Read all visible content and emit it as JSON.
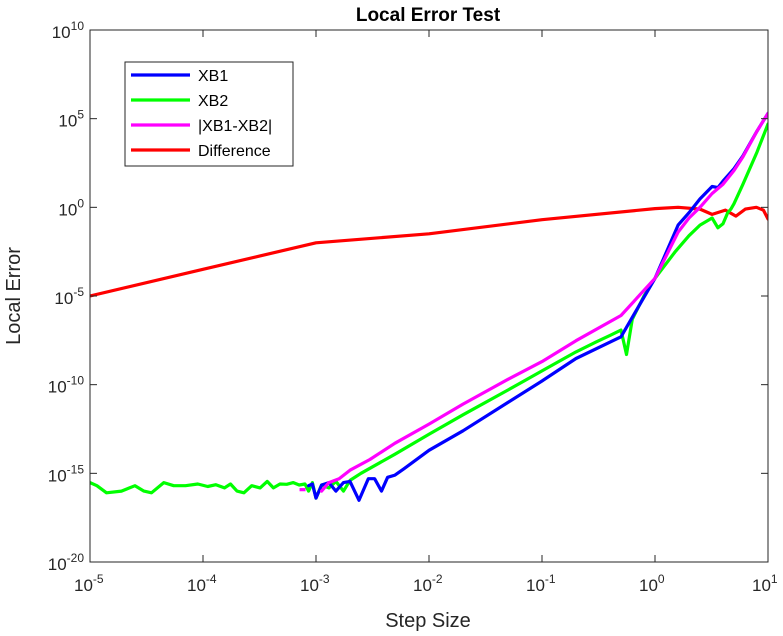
{
  "chart_data": {
    "type": "line",
    "title": "Local Error Test",
    "xlabel": "Step Size",
    "ylabel": "Local Error",
    "xscale": "log",
    "yscale": "log",
    "xlim": [
      1e-05,
      10
    ],
    "ylim": [
      1e-20,
      10000000000.0
    ],
    "grid": false,
    "legend_position": "top-left",
    "x_ticks": [
      {
        "base": "10",
        "exp": "-5",
        "value": 1e-05
      },
      {
        "base": "10",
        "exp": "-4",
        "value": 0.0001
      },
      {
        "base": "10",
        "exp": "-3",
        "value": 0.001
      },
      {
        "base": "10",
        "exp": "-2",
        "value": 0.01
      },
      {
        "base": "10",
        "exp": "-1",
        "value": 0.1
      },
      {
        "base": "10",
        "exp": "0",
        "value": 1
      },
      {
        "base": "10",
        "exp": "1",
        "value": 10
      }
    ],
    "y_ticks": [
      {
        "base": "10",
        "exp": "-20",
        "value": 1e-20
      },
      {
        "base": "10",
        "exp": "-15",
        "value": 1e-15
      },
      {
        "base": "10",
        "exp": "-10",
        "value": 1e-10
      },
      {
        "base": "10",
        "exp": "-5",
        "value": 1e-05
      },
      {
        "base": "10",
        "exp": "0",
        "value": 1
      },
      {
        "base": "10",
        "exp": "5",
        "value": 100000.0
      },
      {
        "base": "10",
        "exp": "10",
        "value": 10000000000.0
      }
    ],
    "series": [
      {
        "name": "Difference",
        "color": "#ff0000",
        "points": [
          [
            1e-05,
            1e-05
          ],
          [
            0.0001,
            0.00032
          ],
          [
            0.001,
            0.01
          ],
          [
            0.01,
            0.032
          ],
          [
            0.1,
            0.2
          ],
          [
            1,
            0.85
          ],
          [
            1.6,
            1.0
          ],
          [
            2.5,
            0.8
          ],
          [
            3.2,
            0.4
          ],
          [
            4.2,
            0.7
          ],
          [
            5.2,
            0.32
          ],
          [
            6.3,
            0.8
          ],
          [
            7.9,
            1.0
          ],
          [
            9.1,
            0.7
          ],
          [
            10,
            0.22
          ]
        ]
      },
      {
        "name": "XB2",
        "color": "#00ff00",
        "points": [
          [
            1e-05,
            3e-16
          ],
          [
            1.15e-05,
            2e-16
          ],
          [
            1.4e-05,
            8e-17
          ],
          [
            1.9e-05,
            1e-16
          ],
          [
            2.5e-05,
            2e-16
          ],
          [
            3e-05,
            1e-16
          ],
          [
            3.5e-05,
            8e-17
          ],
          [
            4.5e-05,
            3e-16
          ],
          [
            5.5e-05,
            2e-16
          ],
          [
            7e-05,
            2e-16
          ],
          [
            9e-05,
            2.5e-16
          ],
          [
            0.00011,
            1.8e-16
          ],
          [
            0.00013,
            2.3e-16
          ],
          [
            0.000155,
            1.5e-16
          ],
          [
            0.000175,
            2.5e-16
          ],
          [
            0.0002,
            1e-16
          ],
          [
            0.00023,
            8e-17
          ],
          [
            0.00027,
            2e-16
          ],
          [
            0.00032,
            1.5e-16
          ],
          [
            0.00037,
            3.5e-16
          ],
          [
            0.00042,
            1.5e-16
          ],
          [
            0.00048,
            2.5e-16
          ],
          [
            0.00055,
            2.4e-16
          ],
          [
            0.00063,
            3e-16
          ],
          [
            0.00071,
            2.2e-16
          ],
          [
            0.0008,
            2.5e-16
          ],
          [
            0.00086,
            1e-16
          ],
          [
            0.00093,
            3e-16
          ],
          [
            0.001,
            4e-17
          ],
          [
            0.00112,
            2.2e-16
          ],
          [
            0.0013,
            1.5e-16
          ],
          [
            0.0015,
            3.5e-16
          ],
          [
            0.00175,
            1e-16
          ],
          [
            0.002,
            4e-16
          ],
          [
            0.0025,
            1e-15
          ],
          [
            0.005,
            1.2e-14
          ],
          [
            0.01,
            1.6e-13
          ],
          [
            0.02,
            2e-12
          ],
          [
            0.05,
            5e-11
          ],
          [
            0.1,
            6e-10
          ],
          [
            0.2,
            7e-09
          ],
          [
            0.3,
            2.5e-08
          ],
          [
            0.4,
            6e-08
          ],
          [
            0.5,
            1.2e-07
          ],
          [
            0.56,
            5e-09
          ],
          [
            0.63,
            5e-07
          ],
          [
            0.8,
            1e-05
          ],
          [
            1,
            0.0001
          ],
          [
            1.5,
            0.003
          ],
          [
            2,
            0.025
          ],
          [
            2.5,
            0.1
          ],
          [
            3.2,
            0.25
          ],
          [
            3.6,
            0.07
          ],
          [
            4,
            0.12
          ],
          [
            4.4,
            0.5
          ],
          [
            4.7,
            0.8
          ],
          [
            5,
            1.6
          ],
          [
            6,
            20
          ],
          [
            8,
            1300
          ],
          [
            10,
            50000
          ]
        ]
      },
      {
        "name": "XB1",
        "color": "#0000ff",
        "points": [
          [
            0.00086,
            2e-16
          ],
          [
            0.00093,
            2.5e-16
          ],
          [
            0.001,
            4e-17
          ],
          [
            0.00112,
            2.2e-16
          ],
          [
            0.0013,
            3e-16
          ],
          [
            0.0015,
            1e-16
          ],
          [
            0.00175,
            3e-16
          ],
          [
            0.002,
            3.5e-16
          ],
          [
            0.0024,
            3e-17
          ],
          [
            0.0029,
            5e-16
          ],
          [
            0.0033,
            5e-16
          ],
          [
            0.0038,
            1e-16
          ],
          [
            0.0043,
            6e-16
          ],
          [
            0.005,
            8e-16
          ],
          [
            0.006,
            1.8e-15
          ],
          [
            0.01,
            2e-14
          ],
          [
            0.02,
            2.5e-13
          ],
          [
            0.05,
            1e-11
          ],
          [
            0.1,
            1.6e-10
          ],
          [
            0.2,
            3e-09
          ],
          [
            0.5,
            5e-08
          ],
          [
            1,
            0.0001
          ],
          [
            1.6,
            0.1
          ],
          [
            2,
            0.5
          ],
          [
            2.5,
            3
          ],
          [
            3.2,
            15
          ],
          [
            3.6,
            13
          ],
          [
            4,
            30
          ],
          [
            5,
            150
          ],
          [
            6,
            800
          ],
          [
            8,
            20000
          ],
          [
            10,
            200000
          ]
        ]
      },
      {
        "name": "|XB1-XB2|",
        "color": "#ff00ff",
        "points": [
          [
            0.00112,
            1e-16
          ],
          [
            0.0013,
            3e-16
          ],
          [
            0.0016,
            5e-16
          ],
          [
            0.002,
            1.5e-15
          ],
          [
            0.003,
            6e-15
          ],
          [
            0.005,
            5e-14
          ],
          [
            0.01,
            6e-13
          ],
          [
            0.02,
            8e-12
          ],
          [
            0.05,
            2e-10
          ],
          [
            0.1,
            2e-09
          ],
          [
            0.2,
            3e-08
          ],
          [
            0.5,
            8e-07
          ],
          [
            1,
            0.0001
          ],
          [
            1.6,
            0.04
          ],
          [
            2,
            0.25
          ],
          [
            2.5,
            1
          ],
          [
            3.2,
            6
          ],
          [
            4,
            20
          ],
          [
            5,
            120
          ],
          [
            6,
            700
          ],
          [
            8,
            20000
          ],
          [
            10,
            200000
          ]
        ],
        "isolated_points": [
          [
            0.00076,
            1.2e-16
          ]
        ]
      }
    ],
    "legend_entries": [
      "XB1",
      "XB2",
      "|XB1-XB2|",
      "Difference"
    ]
  }
}
